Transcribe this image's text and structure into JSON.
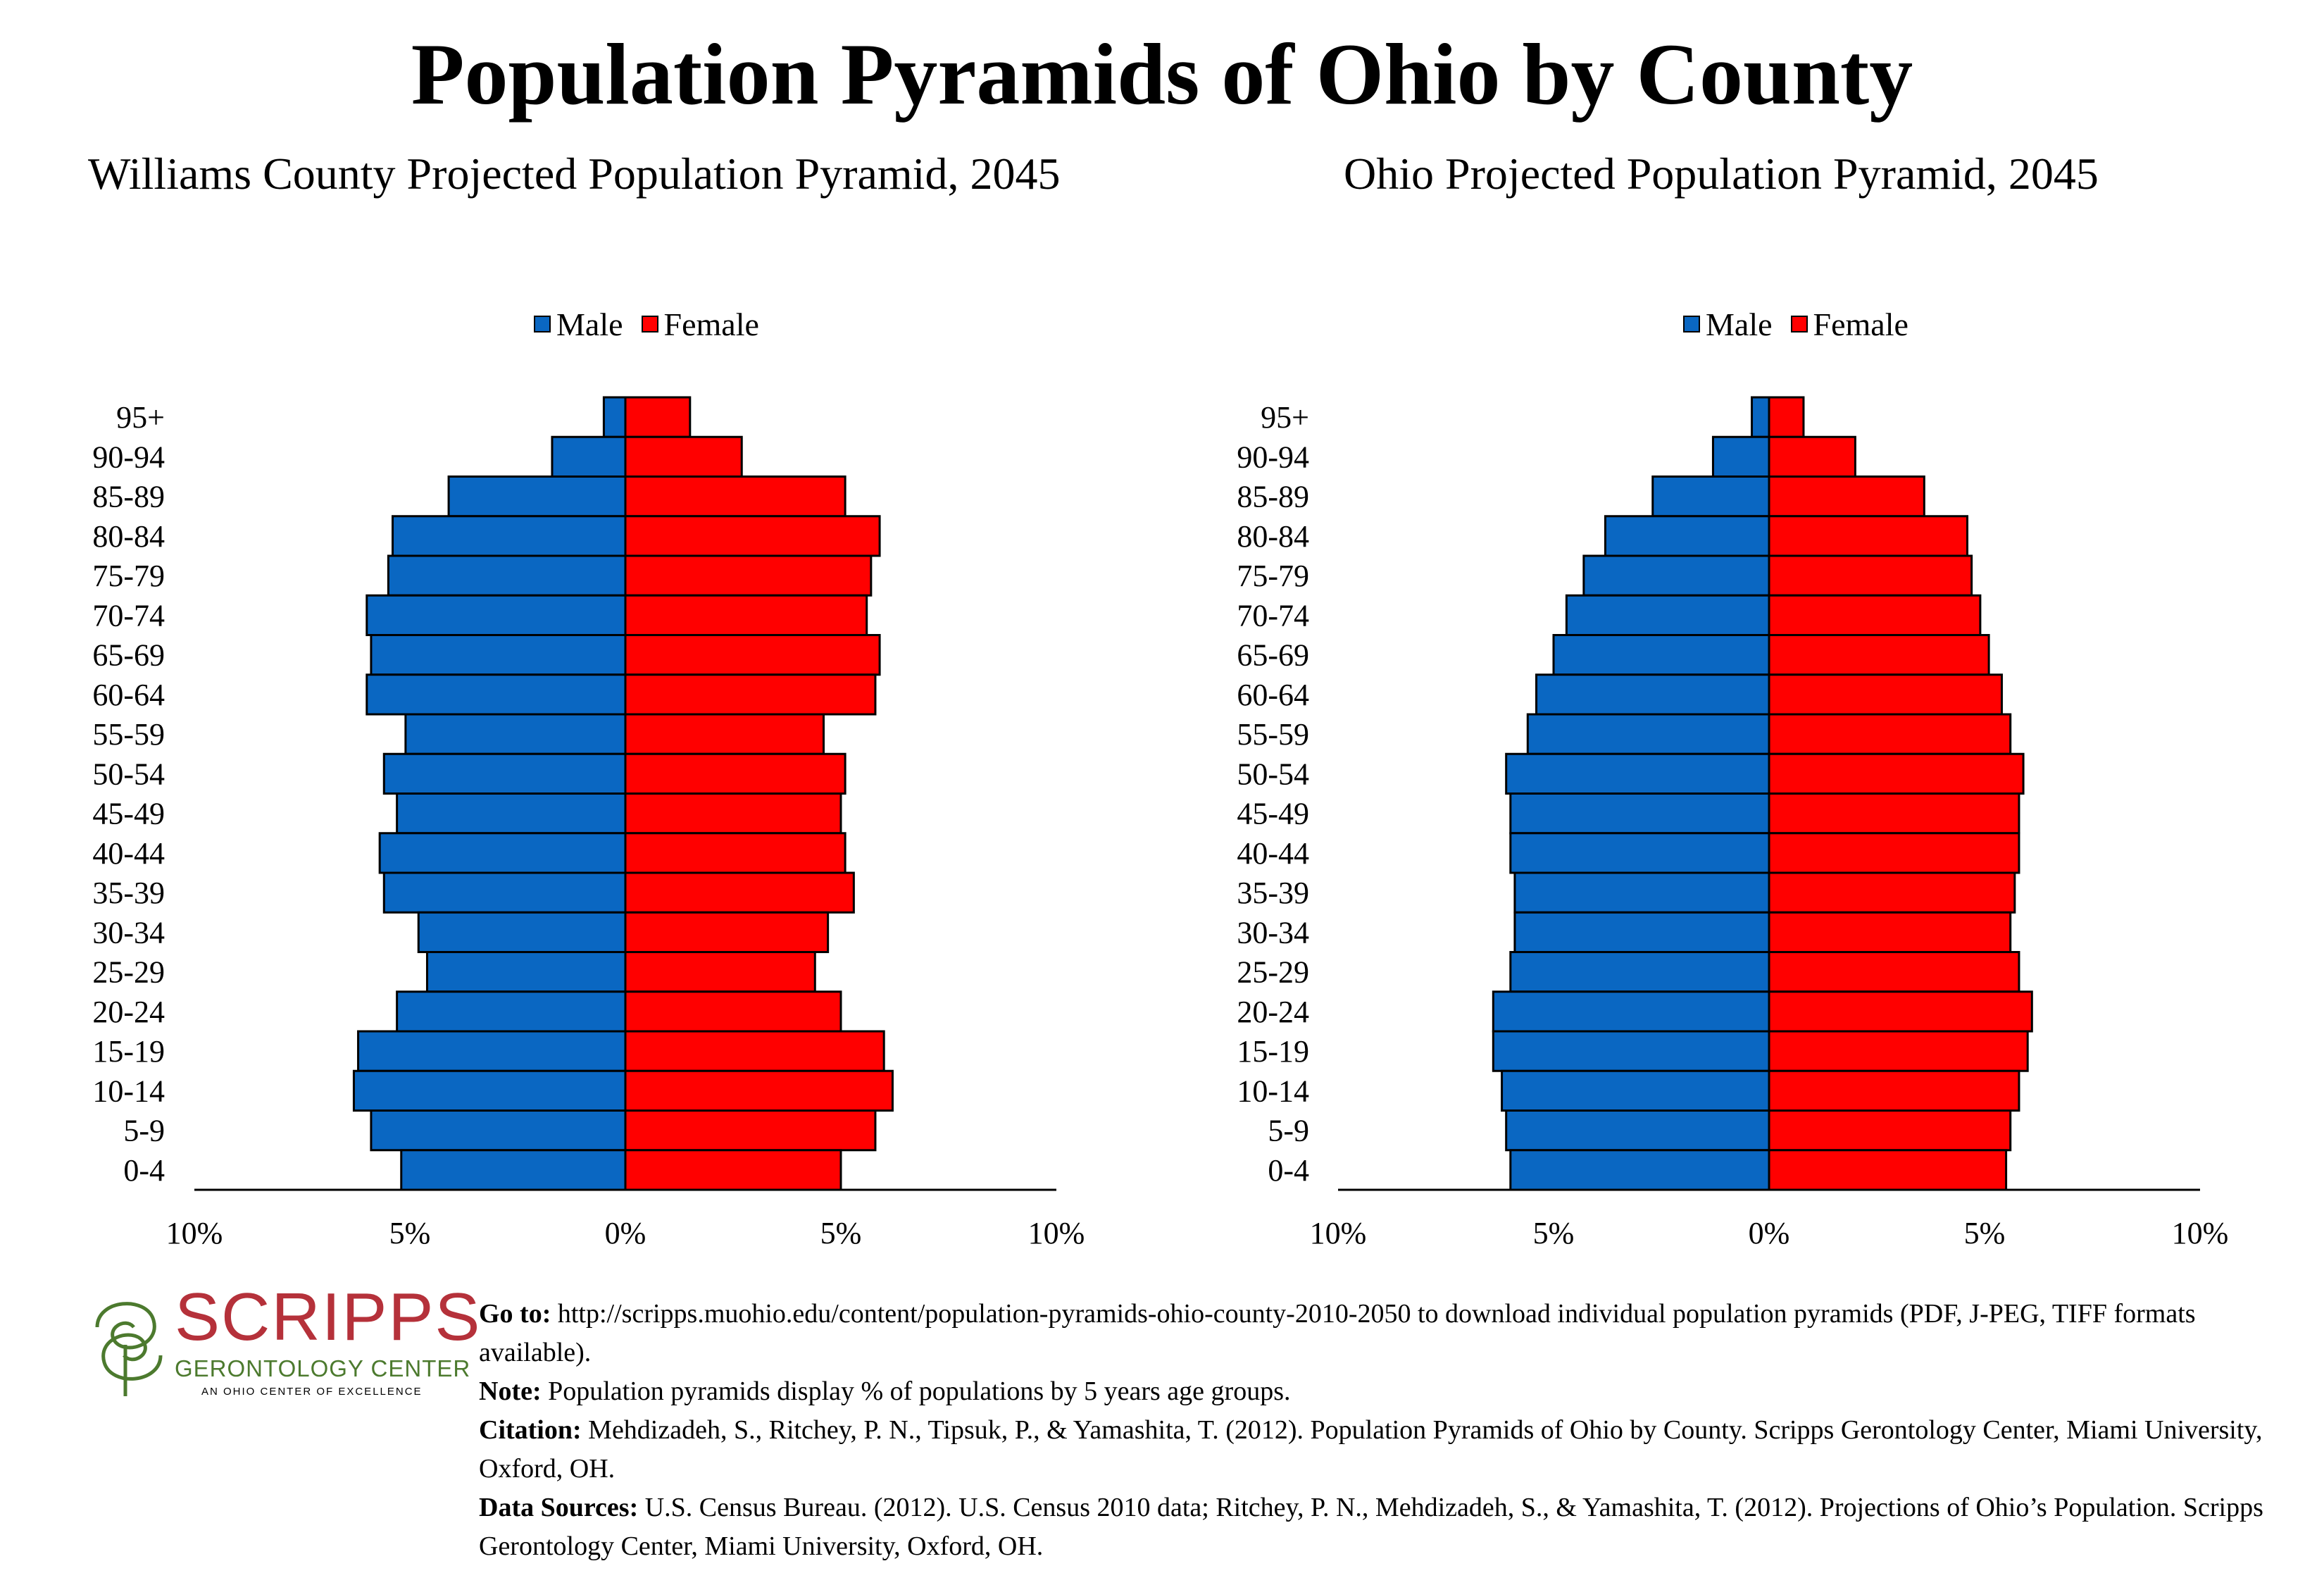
{
  "title": "Population Pyramids of Ohio by County",
  "chart_data": [
    {
      "type": "bar",
      "orientation": "horizontal",
      "title": "Williams County Projected Population Pyramid, 2045",
      "categories": [
        "95+",
        "90-94",
        "85-89",
        "80-84",
        "75-79",
        "70-74",
        "65-69",
        "60-64",
        "55-59",
        "50-54",
        "45-49",
        "40-44",
        "35-39",
        "30-34",
        "25-29",
        "20-24",
        "15-19",
        "10-14",
        "5-9",
        "0-4"
      ],
      "series": [
        {
          "name": "Male",
          "color": "#0a67c2",
          "values": [
            0.5,
            1.7,
            4.1,
            5.4,
            5.5,
            6.0,
            5.9,
            6.0,
            5.1,
            5.6,
            5.3,
            5.7,
            5.6,
            4.8,
            4.6,
            5.3,
            6.2,
            6.3,
            5.9,
            5.2
          ]
        },
        {
          "name": "Female",
          "color": "#ff0000",
          "values": [
            1.5,
            2.7,
            5.1,
            5.9,
            5.7,
            5.6,
            5.9,
            5.8,
            4.6,
            5.1,
            5.0,
            5.1,
            5.3,
            4.7,
            4.4,
            5.0,
            6.0,
            6.2,
            5.8,
            5.0
          ]
        }
      ],
      "x_ticks": [
        "10%",
        "5%",
        "0%",
        "5%",
        "10%"
      ],
      "xlim": [
        -10,
        10
      ],
      "legend": "top-center"
    },
    {
      "type": "bar",
      "orientation": "horizontal",
      "title": "Ohio Projected Population Pyramid, 2045",
      "categories": [
        "95+",
        "90-94",
        "85-89",
        "80-84",
        "75-79",
        "70-74",
        "65-69",
        "60-64",
        "55-59",
        "50-54",
        "45-49",
        "40-44",
        "35-39",
        "30-34",
        "25-29",
        "20-24",
        "15-19",
        "10-14",
        "5-9",
        "0-4"
      ],
      "series": [
        {
          "name": "Male",
          "color": "#0a67c2",
          "values": [
            0.4,
            1.3,
            2.7,
            3.8,
            4.3,
            4.7,
            5.0,
            5.4,
            5.6,
            6.1,
            6.0,
            6.0,
            5.9,
            5.9,
            6.0,
            6.4,
            6.4,
            6.2,
            6.1,
            6.0
          ]
        },
        {
          "name": "Female",
          "color": "#ff0000",
          "values": [
            0.8,
            2.0,
            3.6,
            4.6,
            4.7,
            4.9,
            5.1,
            5.4,
            5.6,
            5.9,
            5.8,
            5.8,
            5.7,
            5.6,
            5.8,
            6.1,
            6.0,
            5.8,
            5.6,
            5.5
          ]
        }
      ],
      "x_ticks": [
        "10%",
        "5%",
        "0%",
        "5%",
        "10%"
      ],
      "xlim": [
        -10,
        10
      ],
      "legend": "top-center"
    }
  ],
  "logo": {
    "name": "SCRIPPS",
    "subtitle": "GERONTOLOGY CENTER",
    "tagline": "AN OHIO CENTER OF EXCELLENCE"
  },
  "footer": {
    "goto_label": "Go to:",
    "goto_text": "http://scripps.muohio.edu/content/population-pyramids-ohio-county-2010-2050 to download individual population pyramids (PDF, J-PEG, TIFF formats available).",
    "note_label": "Note:",
    "note_text": "Population pyramids display % of populations by 5 years age groups.",
    "citation_label": "Citation:",
    "citation_text": "Mehdizadeh, S., Ritchey, P. N., Tipsuk, P., & Yamashita, T. (2012). Population Pyramids of Ohio by County. Scripps Gerontology Center, Miami University, Oxford, OH.",
    "sources_label": "Data Sources:",
    "sources_text": "U.S. Census Bureau. (2012). U.S. Census 2010 data; Ritchey, P. N., Mehdizadeh, S., & Yamashita, T. (2012). Projections of Ohio’s Population. Scripps Gerontology Center, Miami University, Oxford, OH."
  }
}
